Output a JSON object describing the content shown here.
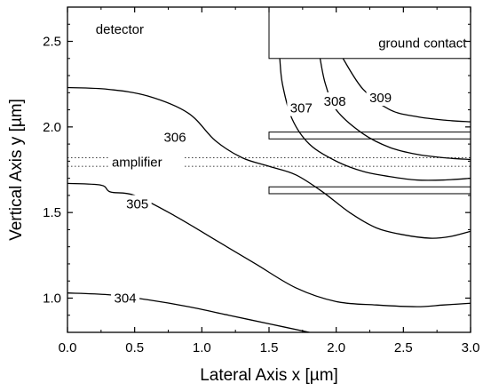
{
  "chart_data": {
    "type": "line",
    "title": "",
    "xlabel": "Lateral Axis x [µm]",
    "ylabel": "Vertical Axis y [µm]",
    "xlim": [
      0.0,
      3.0
    ],
    "ylim": [
      0.8,
      2.7
    ],
    "xticks": [
      "0.0",
      "0.5",
      "1.0",
      "1.5",
      "2.0",
      "2.5",
      "3.0"
    ],
    "yticks": [
      "1.0",
      "1.5",
      "2.0",
      "2.5"
    ],
    "grid": false,
    "region_labels": {
      "detector": "detector",
      "ground_contact": "ground contact",
      "amplifier": "amplifier"
    },
    "regions": {
      "ground_contact_box": {
        "x": [
          1.5,
          3.0
        ],
        "y": [
          2.4,
          2.7
        ]
      },
      "upper_strip": {
        "x": [
          1.5,
          3.0
        ],
        "y": [
          1.93,
          1.97
        ]
      },
      "lower_strip": {
        "x": [
          1.5,
          3.0
        ],
        "y": [
          1.61,
          1.65
        ]
      },
      "amplifier_dotted_y": [
        1.77,
        1.82
      ]
    },
    "series": [
      {
        "name": "304",
        "x": [
          0.0,
          0.3,
          0.6,
          0.9,
          1.2,
          1.5,
          1.8
        ],
        "y": [
          1.03,
          1.02,
          0.99,
          0.95,
          0.9,
          0.85,
          0.8
        ]
      },
      {
        "name": "305",
        "x": [
          0.0,
          0.25,
          0.32,
          0.5,
          0.8,
          1.1,
          1.4,
          1.7,
          2.0,
          2.3,
          2.6,
          2.8,
          3.0
        ],
        "y": [
          1.67,
          1.66,
          1.62,
          1.6,
          1.48,
          1.34,
          1.2,
          1.06,
          0.98,
          0.96,
          0.95,
          0.96,
          0.97
        ]
      },
      {
        "name": "306",
        "x": [
          0.0,
          0.3,
          0.6,
          0.9,
          1.1,
          1.3,
          1.5,
          1.7,
          1.9,
          2.1,
          2.3,
          2.5,
          2.7,
          2.85,
          3.0
        ],
        "y": [
          2.23,
          2.22,
          2.18,
          2.08,
          1.92,
          1.82,
          1.77,
          1.72,
          1.62,
          1.5,
          1.41,
          1.37,
          1.35,
          1.36,
          1.39
        ]
      },
      {
        "name": "307",
        "x": [
          1.58,
          1.6,
          1.67,
          1.8,
          2.0,
          2.2,
          2.4,
          2.6,
          2.8,
          3.0
        ],
        "y": [
          2.4,
          2.25,
          2.05,
          1.9,
          1.8,
          1.74,
          1.71,
          1.69,
          1.69,
          1.7
        ]
      },
      {
        "name": "308",
        "x": [
          1.88,
          1.92,
          2.0,
          2.2,
          2.4,
          2.6,
          2.8,
          3.0
        ],
        "y": [
          2.4,
          2.25,
          2.1,
          1.96,
          1.88,
          1.84,
          1.82,
          1.81
        ]
      },
      {
        "name": "309",
        "x": [
          2.05,
          2.2,
          2.4,
          2.6,
          2.8,
          3.0
        ],
        "y": [
          2.4,
          2.22,
          2.1,
          2.06,
          2.04,
          2.03
        ]
      }
    ],
    "line_labels": [
      {
        "text": "304",
        "x": 0.43,
        "y": 1.0
      },
      {
        "text": "305",
        "x": 0.52,
        "y": 1.55
      },
      {
        "text": "306",
        "x": 0.8,
        "y": 1.94
      },
      {
        "text": "307",
        "x": 1.74,
        "y": 2.11
      },
      {
        "text": "308",
        "x": 1.99,
        "y": 2.15
      },
      {
        "text": "309",
        "x": 2.33,
        "y": 2.17
      }
    ]
  }
}
